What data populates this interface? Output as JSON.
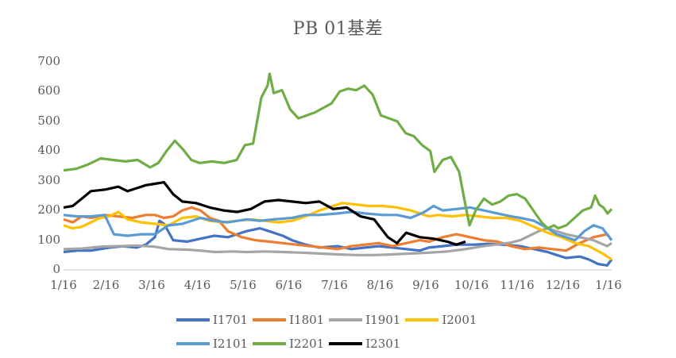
{
  "chart_data": {
    "type": "line",
    "title": "PB 01基差",
    "xlabel": "",
    "ylabel": "",
    "ylim": [
      0,
      700
    ],
    "y_ticks": [
      "0",
      "100",
      "200",
      "300",
      "400",
      "500",
      "600",
      "700"
    ],
    "x_tick_labels": [
      "1/16",
      "2/16",
      "3/16",
      "4/16",
      "5/16",
      "6/16",
      "7/16",
      "8/16",
      "9/16",
      "10/16",
      "11/16",
      "12/16",
      "1/16"
    ],
    "grid": false,
    "legend_position": "bottom",
    "x_unit": "months since 1/16",
    "series": [
      {
        "name": "I1701",
        "color": "#4472C4",
        "points": [
          [
            0,
            60
          ],
          [
            0.3,
            65
          ],
          [
            0.6,
            65
          ],
          [
            1.0,
            75
          ],
          [
            1.3,
            80
          ],
          [
            1.6,
            75
          ],
          [
            1.8,
            85
          ],
          [
            2.0,
            110
          ],
          [
            2.1,
            165
          ],
          [
            2.2,
            155
          ],
          [
            2.4,
            100
          ],
          [
            2.7,
            95
          ],
          [
            3.0,
            105
          ],
          [
            3.3,
            115
          ],
          [
            3.6,
            110
          ],
          [
            3.8,
            120
          ],
          [
            4.0,
            130
          ],
          [
            4.3,
            140
          ],
          [
            4.5,
            130
          ],
          [
            4.8,
            115
          ],
          [
            5.0,
            100
          ],
          [
            5.3,
            85
          ],
          [
            5.6,
            75
          ],
          [
            6.0,
            80
          ],
          [
            6.3,
            70
          ],
          [
            6.6,
            75
          ],
          [
            6.9,
            80
          ],
          [
            7.2,
            75
          ],
          [
            7.5,
            70
          ],
          [
            7.8,
            65
          ],
          [
            8.0,
            75
          ],
          [
            8.3,
            80
          ],
          [
            8.6,
            85
          ],
          [
            9.0,
            85
          ],
          [
            9.3,
            88
          ],
          [
            9.6,
            85
          ],
          [
            10.0,
            80
          ],
          [
            10.3,
            70
          ],
          [
            10.6,
            60
          ],
          [
            10.8,
            50
          ],
          [
            11.0,
            40
          ],
          [
            11.3,
            45
          ],
          [
            11.5,
            35
          ],
          [
            11.7,
            20
          ],
          [
            11.9,
            15
          ],
          [
            12.0,
            35
          ]
        ]
      },
      {
        "name": "I1801",
        "color": "#ED7D31",
        "points": [
          [
            0,
            170
          ],
          [
            0.2,
            160
          ],
          [
            0.4,
            180
          ],
          [
            0.6,
            175
          ],
          [
            0.9,
            185
          ],
          [
            1.2,
            180
          ],
          [
            1.5,
            175
          ],
          [
            1.8,
            185
          ],
          [
            2.0,
            185
          ],
          [
            2.2,
            175
          ],
          [
            2.4,
            180
          ],
          [
            2.6,
            200
          ],
          [
            2.8,
            210
          ],
          [
            3.0,
            200
          ],
          [
            3.2,
            175
          ],
          [
            3.4,
            165
          ],
          [
            3.6,
            130
          ],
          [
            3.9,
            110
          ],
          [
            4.2,
            100
          ],
          [
            4.5,
            95
          ],
          [
            4.8,
            90
          ],
          [
            5.1,
            85
          ],
          [
            5.4,
            80
          ],
          [
            5.7,
            75
          ],
          [
            6.0,
            70
          ],
          [
            6.3,
            80
          ],
          [
            6.6,
            85
          ],
          [
            6.9,
            90
          ],
          [
            7.2,
            80
          ],
          [
            7.5,
            90
          ],
          [
            7.8,
            100
          ],
          [
            8.0,
            95
          ],
          [
            8.3,
            110
          ],
          [
            8.6,
            120
          ],
          [
            8.9,
            110
          ],
          [
            9.2,
            100
          ],
          [
            9.5,
            95
          ],
          [
            9.8,
            80
          ],
          [
            10.1,
            70
          ],
          [
            10.4,
            75
          ],
          [
            10.7,
            70
          ],
          [
            11.0,
            65
          ],
          [
            11.3,
            90
          ],
          [
            11.6,
            110
          ],
          [
            11.9,
            120
          ],
          [
            12.0,
            100
          ]
        ]
      },
      {
        "name": "I1901",
        "color": "#A5A5A5",
        "points": [
          [
            0,
            70
          ],
          [
            0.4,
            72
          ],
          [
            0.8,
            78
          ],
          [
            1.2,
            80
          ],
          [
            1.6,
            82
          ],
          [
            2.0,
            78
          ],
          [
            2.3,
            70
          ],
          [
            2.7,
            68
          ],
          [
            3.0,
            65
          ],
          [
            3.3,
            60
          ],
          [
            3.7,
            62
          ],
          [
            4.0,
            60
          ],
          [
            4.4,
            62
          ],
          [
            4.8,
            60
          ],
          [
            5.2,
            58
          ],
          [
            5.6,
            55
          ],
          [
            6.0,
            52
          ],
          [
            6.4,
            50
          ],
          [
            6.8,
            50
          ],
          [
            7.2,
            52
          ],
          [
            7.6,
            55
          ],
          [
            8.0,
            58
          ],
          [
            8.4,
            62
          ],
          [
            8.8,
            70
          ],
          [
            9.2,
            80
          ],
          [
            9.6,
            88
          ],
          [
            9.8,
            92
          ],
          [
            10.0,
            100
          ],
          [
            10.2,
            115
          ],
          [
            10.4,
            130
          ],
          [
            10.6,
            140
          ],
          [
            10.8,
            130
          ],
          [
            11.0,
            120
          ],
          [
            11.3,
            110
          ],
          [
            11.6,
            100
          ],
          [
            11.9,
            80
          ],
          [
            12.0,
            90
          ]
        ]
      },
      {
        "name": "I2001",
        "color": "#FFC000",
        "points": [
          [
            0,
            150
          ],
          [
            0.2,
            140
          ],
          [
            0.4,
            145
          ],
          [
            0.6,
            160
          ],
          [
            0.8,
            175
          ],
          [
            1.0,
            180
          ],
          [
            1.2,
            195
          ],
          [
            1.4,
            170
          ],
          [
            1.7,
            160
          ],
          [
            2.0,
            155
          ],
          [
            2.3,
            150
          ],
          [
            2.6,
            175
          ],
          [
            2.9,
            180
          ],
          [
            3.2,
            165
          ],
          [
            3.5,
            160
          ],
          [
            3.8,
            165
          ],
          [
            4.1,
            170
          ],
          [
            4.4,
            165
          ],
          [
            4.7,
            160
          ],
          [
            5.0,
            165
          ],
          [
            5.3,
            180
          ],
          [
            5.6,
            200
          ],
          [
            5.9,
            215
          ],
          [
            6.1,
            225
          ],
          [
            6.4,
            220
          ],
          [
            6.7,
            215
          ],
          [
            7.0,
            215
          ],
          [
            7.3,
            210
          ],
          [
            7.6,
            200
          ],
          [
            7.8,
            190
          ],
          [
            8.0,
            180
          ],
          [
            8.2,
            185
          ],
          [
            8.5,
            180
          ],
          [
            8.8,
            185
          ],
          [
            9.1,
            180
          ],
          [
            9.4,
            175
          ],
          [
            9.7,
            175
          ],
          [
            10.0,
            165
          ],
          [
            10.3,
            145
          ],
          [
            10.6,
            125
          ],
          [
            10.9,
            110
          ],
          [
            11.2,
            90
          ],
          [
            11.5,
            80
          ],
          [
            11.8,
            55
          ],
          [
            12.0,
            35
          ]
        ]
      },
      {
        "name": "I2101",
        "color": "#5B9BD5",
        "points": [
          [
            0,
            185
          ],
          [
            0.3,
            180
          ],
          [
            0.6,
            180
          ],
          [
            0.9,
            185
          ],
          [
            1.1,
            120
          ],
          [
            1.4,
            115
          ],
          [
            1.7,
            120
          ],
          [
            2.0,
            120
          ],
          [
            2.3,
            150
          ],
          [
            2.6,
            155
          ],
          [
            3.0,
            175
          ],
          [
            3.3,
            165
          ],
          [
            3.6,
            160
          ],
          [
            4.0,
            170
          ],
          [
            4.3,
            165
          ],
          [
            4.6,
            170
          ],
          [
            5.0,
            175
          ],
          [
            5.3,
            185
          ],
          [
            5.6,
            185
          ],
          [
            6.0,
            190
          ],
          [
            6.3,
            195
          ],
          [
            6.6,
            190
          ],
          [
            7.0,
            185
          ],
          [
            7.3,
            185
          ],
          [
            7.6,
            175
          ],
          [
            7.9,
            195
          ],
          [
            8.1,
            215
          ],
          [
            8.3,
            200
          ],
          [
            8.6,
            205
          ],
          [
            8.9,
            210
          ],
          [
            9.2,
            200
          ],
          [
            9.5,
            190
          ],
          [
            9.8,
            180
          ],
          [
            10.0,
            175
          ],
          [
            10.3,
            165
          ],
          [
            10.6,
            140
          ],
          [
            10.8,
            120
          ],
          [
            11.0,
            110
          ],
          [
            11.2,
            100
          ],
          [
            11.4,
            130
          ],
          [
            11.6,
            150
          ],
          [
            11.8,
            140
          ],
          [
            12.0,
            100
          ]
        ]
      },
      {
        "name": "I2201",
        "color": "#70AD47",
        "points": [
          [
            0,
            335
          ],
          [
            0.3,
            340
          ],
          [
            0.6,
            355
          ],
          [
            0.9,
            375
          ],
          [
            1.2,
            370
          ],
          [
            1.5,
            365
          ],
          [
            1.8,
            370
          ],
          [
            2.1,
            345
          ],
          [
            2.3,
            360
          ],
          [
            2.5,
            400
          ],
          [
            2.7,
            435
          ],
          [
            2.9,
            405
          ],
          [
            3.1,
            370
          ],
          [
            3.3,
            360
          ],
          [
            3.6,
            365
          ],
          [
            3.9,
            360
          ],
          [
            4.2,
            370
          ],
          [
            4.4,
            420
          ],
          [
            4.6,
            425
          ],
          [
            4.8,
            580
          ],
          [
            4.95,
            620
          ],
          [
            5.0,
            660
          ],
          [
            5.1,
            595
          ],
          [
            5.3,
            605
          ],
          [
            5.5,
            540
          ],
          [
            5.7,
            510
          ],
          [
            5.9,
            520
          ],
          [
            6.1,
            530
          ],
          [
            6.3,
            545
          ],
          [
            6.5,
            560
          ],
          [
            6.7,
            600
          ],
          [
            6.9,
            610
          ],
          [
            7.1,
            605
          ],
          [
            7.3,
            620
          ],
          [
            7.5,
            590
          ],
          [
            7.7,
            520
          ],
          [
            7.9,
            510
          ],
          [
            8.1,
            500
          ],
          [
            8.3,
            460
          ],
          [
            8.5,
            450
          ],
          [
            8.7,
            420
          ],
          [
            8.9,
            400
          ],
          [
            9.0,
            330
          ],
          [
            9.2,
            370
          ],
          [
            9.4,
            380
          ],
          [
            9.6,
            330
          ],
          [
            9.75,
            220
          ],
          [
            9.85,
            150
          ],
          [
            10.0,
            200
          ],
          [
            10.2,
            240
          ],
          [
            10.4,
            220
          ],
          [
            10.6,
            230
          ],
          [
            10.8,
            250
          ],
          [
            11.0,
            255
          ],
          [
            11.2,
            240
          ],
          [
            11.4,
            200
          ],
          [
            11.6,
            160
          ],
          [
            11.75,
            140
          ],
          [
            11.9,
            150
          ],
          [
            12.0,
            140
          ],
          [
            12.2,
            150
          ],
          [
            12.4,
            175
          ],
          [
            12.6,
            200
          ],
          [
            12.8,
            210
          ],
          [
            12.9,
            250
          ],
          [
            13.0,
            220
          ],
          [
            13.1,
            210
          ],
          [
            13.2,
            190
          ],
          [
            13.3,
            205
          ]
        ]
      },
      {
        "name": "I2301",
        "color": "#000000",
        "points": [
          [
            0,
            210
          ],
          [
            0.2,
            215
          ],
          [
            0.4,
            240
          ],
          [
            0.6,
            265
          ],
          [
            0.9,
            270
          ],
          [
            1.2,
            280
          ],
          [
            1.4,
            265
          ],
          [
            1.6,
            275
          ],
          [
            1.8,
            285
          ],
          [
            2.0,
            290
          ],
          [
            2.2,
            295
          ],
          [
            2.4,
            255
          ],
          [
            2.6,
            230
          ],
          [
            2.9,
            225
          ],
          [
            3.2,
            210
          ],
          [
            3.5,
            200
          ],
          [
            3.8,
            195
          ],
          [
            4.1,
            205
          ],
          [
            4.4,
            230
          ],
          [
            4.7,
            235
          ],
          [
            5.0,
            230
          ],
          [
            5.3,
            225
          ],
          [
            5.6,
            230
          ],
          [
            5.9,
            205
          ],
          [
            6.2,
            210
          ],
          [
            6.5,
            180
          ],
          [
            6.8,
            170
          ],
          [
            7.0,
            130
          ],
          [
            7.1,
            110
          ],
          [
            7.3,
            90
          ],
          [
            7.5,
            125
          ],
          [
            7.8,
            110
          ],
          [
            8.1,
            105
          ],
          [
            8.4,
            95
          ],
          [
            8.6,
            85
          ],
          [
            8.8,
            95
          ]
        ]
      }
    ]
  }
}
